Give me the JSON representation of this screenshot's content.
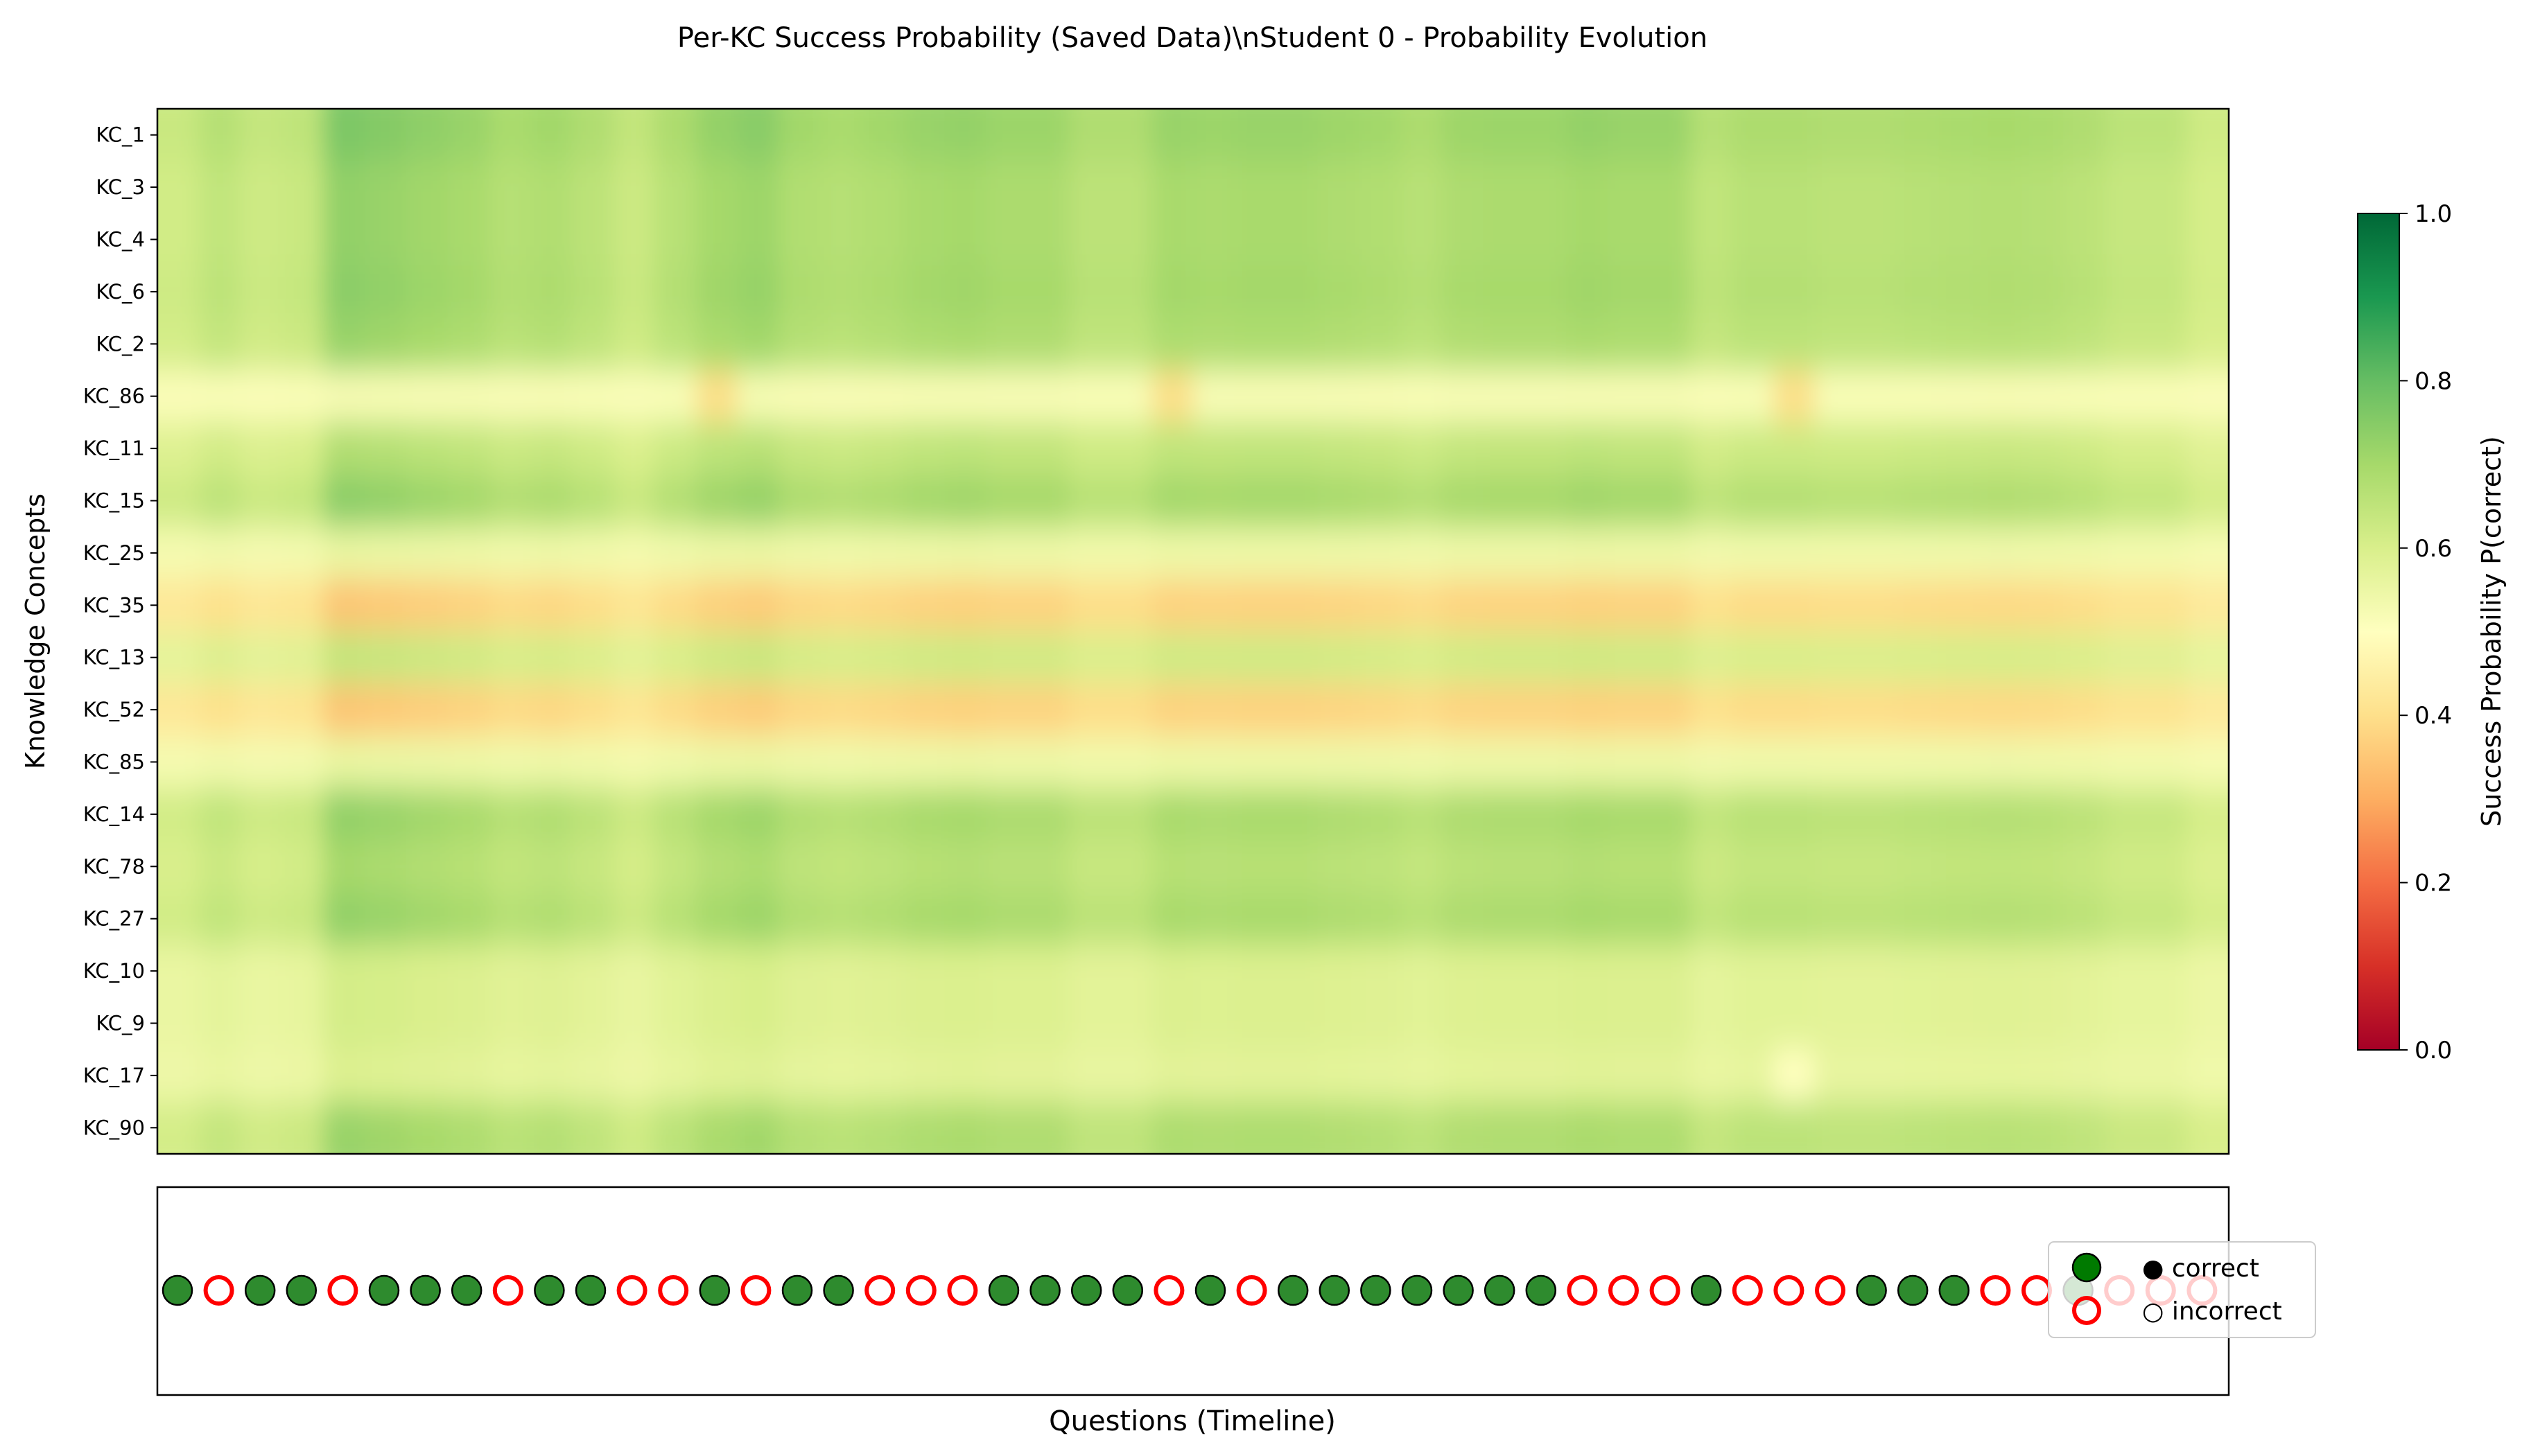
{
  "chart_data": [
    {
      "type": "heatmap",
      "title": "Per-KC Success Probability (Saved Data)\\nStudent 0 - Probability Evolution",
      "ylabel": "Knowledge Concepts",
      "xlabel": "",
      "rows": [
        "KC_1",
        "KC_3",
        "KC_4",
        "KC_6",
        "KC_2",
        "KC_86",
        "KC_11",
        "KC_15",
        "KC_25",
        "KC_35",
        "KC_13",
        "KC_52",
        "KC_85",
        "KC_14",
        "KC_78",
        "KC_27",
        "KC_10",
        "KC_9",
        "KC_17",
        "KC_90"
      ],
      "row_base": [
        0.74,
        0.71,
        0.71,
        0.72,
        0.7,
        0.52,
        0.66,
        0.72,
        0.55,
        0.36,
        0.63,
        0.36,
        0.55,
        0.71,
        0.68,
        0.71,
        0.6,
        0.6,
        0.58,
        0.7
      ],
      "column_factor": [
        0.55,
        0.7,
        0.58,
        0.63,
        1.1,
        1.05,
        0.98,
        0.92,
        0.8,
        0.85,
        0.75,
        0.6,
        0.78,
        0.95,
        1.02,
        0.85,
        0.8,
        0.85,
        0.92,
        0.95,
        0.9,
        0.9,
        0.75,
        0.75,
        0.92,
        0.9,
        0.92,
        0.92,
        0.88,
        0.85,
        0.78,
        0.88,
        0.9,
        0.9,
        0.95,
        0.92,
        0.92,
        0.7,
        0.78,
        0.78,
        0.75,
        0.75,
        0.78,
        0.8,
        0.82,
        0.8,
        0.75,
        0.65,
        0.65,
        0.5
      ],
      "special_cells": [
        {
          "row": "KC_86",
          "question": 13,
          "value": 0.4
        },
        {
          "row": "KC_86",
          "question": 24,
          "value": 0.4
        },
        {
          "row": "KC_86",
          "question": 39,
          "value": 0.4
        },
        {
          "row": "KC_17",
          "question": 39,
          "value": 0.5
        }
      ],
      "n_questions": 50,
      "colormap": "RdYlGn",
      "colorbar": {
        "label": "Success Probability P(correct)",
        "range": [
          0.0,
          1.0
        ],
        "ticks": [
          "0.0",
          "0.2",
          "0.4",
          "0.6",
          "0.8",
          "1.0"
        ]
      }
    },
    {
      "type": "scatter",
      "xlabel": "Questions (Timeline)",
      "responses": [
        1,
        0,
        1,
        1,
        0,
        1,
        1,
        1,
        0,
        1,
        1,
        0,
        0,
        1,
        0,
        1,
        1,
        0,
        0,
        0,
        1,
        1,
        1,
        1,
        0,
        1,
        0,
        1,
        1,
        1,
        1,
        1,
        1,
        1,
        0,
        0,
        0,
        1,
        0,
        0,
        0,
        1,
        1,
        1,
        0,
        0,
        1,
        0,
        0,
        0
      ],
      "legend": {
        "placement": "right",
        "entries": [
          {
            "label": "● correct"
          },
          {
            "label": "○ incorrect"
          }
        ]
      }
    }
  ],
  "colors": {
    "correct_fill": "#2e8b2e",
    "correct_legend": "#007a00",
    "incorrect_edge": "#ff0000"
  }
}
